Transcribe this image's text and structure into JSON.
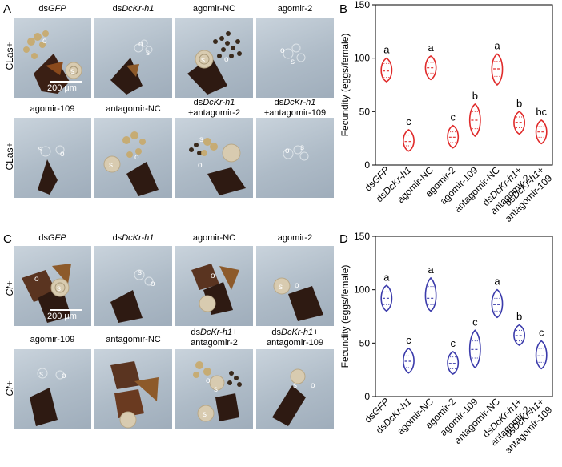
{
  "panels": {
    "A": {
      "letter": "A",
      "row_top_label": "CLas+",
      "row_bottom_label": "CLas+",
      "top_labels": [
        {
          "pre": "ds",
          "it": "GFP",
          "post": ""
        },
        {
          "pre": "ds",
          "it": "DcKr-h1",
          "post": ""
        },
        {
          "pre": "agomir-NC",
          "it": "",
          "post": ""
        },
        {
          "pre": "agomir-2",
          "it": "",
          "post": ""
        }
      ],
      "bottom_labels": [
        {
          "l1pre": "agomir-109",
          "l1it": "",
          "l1post": "",
          "l2": ""
        },
        {
          "l1pre": "antagomir-NC",
          "l1it": "",
          "l1post": "",
          "l2": ""
        },
        {
          "l1pre": "ds",
          "l1it": "DcKr-h1",
          "l1post": "",
          "l2": "+antagomir-2"
        },
        {
          "l1pre": "ds",
          "l1it": "DcKr-h1",
          "l1post": "",
          "l2": "+antagomir-109"
        }
      ],
      "scale": "200 μm"
    },
    "C": {
      "letter": "C",
      "row_top_label": "Cf+",
      "row_bottom_label": "Cf+",
      "top_labels": [
        {
          "pre": "ds",
          "it": "GFP",
          "post": ""
        },
        {
          "pre": "ds",
          "it": "DcKr-h1",
          "post": ""
        },
        {
          "pre": "agomir-NC",
          "it": "",
          "post": ""
        },
        {
          "pre": "agomir-2",
          "it": "",
          "post": ""
        }
      ],
      "bottom_labels": [
        {
          "l1pre": "agomir-109",
          "l1it": "",
          "l1post": "",
          "l2": ""
        },
        {
          "l1pre": "antagomir-NC",
          "l1it": "",
          "l1post": "",
          "l2": ""
        },
        {
          "l1pre": "ds",
          "l1it": "DcKr-h1",
          "l1post": "+",
          "l2": "antagomir-2"
        },
        {
          "l1pre": "ds",
          "l1it": "DcKr-h1",
          "l1post": "+",
          "l2": "antagomir-109"
        }
      ],
      "scale": "200 μm"
    }
  },
  "photo_markers": {
    "s": "s",
    "o": "o"
  },
  "chart_data": [
    {
      "id": "B",
      "letter": "B",
      "type": "violin",
      "color": "#e02a2a",
      "ylabel": "Fecundity (eggs/female)",
      "ylim": [
        0,
        150
      ],
      "yticks": [
        0,
        50,
        100,
        150
      ],
      "categories": [
        {
          "pre": "ds",
          "it": "GFP",
          "post": "",
          "l2": ""
        },
        {
          "pre": "ds",
          "it": "DcKr-h1",
          "post": "",
          "l2": ""
        },
        {
          "pre": "agomir-NC",
          "it": "",
          "post": "",
          "l2": ""
        },
        {
          "pre": "agomir-2",
          "it": "",
          "post": "",
          "l2": ""
        },
        {
          "pre": "agomir-109",
          "it": "",
          "post": "",
          "l2": ""
        },
        {
          "pre": "antagomir-NC",
          "it": "",
          "post": "",
          "l2": ""
        },
        {
          "pre": "ds",
          "it": "DcKr-h1",
          "post": "+",
          "l2": "antagomir-2"
        },
        {
          "pre": "ds",
          "it": "DcKr-h1",
          "post": "+",
          "l2": "antagomir-109"
        }
      ],
      "series": [
        {
          "min": 78,
          "max": 100,
          "median": 88,
          "q1": 82,
          "q3": 95,
          "sig": "a"
        },
        {
          "min": 13,
          "max": 33,
          "median": 22,
          "q1": 18,
          "q3": 28,
          "sig": "c"
        },
        {
          "min": 80,
          "max": 102,
          "median": 91,
          "q1": 86,
          "q3": 96,
          "sig": "a"
        },
        {
          "min": 16,
          "max": 37,
          "median": 26,
          "q1": 21,
          "q3": 31,
          "sig": "c"
        },
        {
          "min": 27,
          "max": 57,
          "median": 42,
          "q1": 34,
          "q3": 50,
          "sig": "b"
        },
        {
          "min": 75,
          "max": 104,
          "median": 90,
          "q1": 83,
          "q3": 97,
          "sig": "a"
        },
        {
          "min": 29,
          "max": 50,
          "median": 40,
          "q1": 35,
          "q3": 45,
          "sig": "b"
        },
        {
          "min": 20,
          "max": 42,
          "median": 31,
          "q1": 26,
          "q3": 36,
          "sig": "bc"
        }
      ]
    },
    {
      "id": "D",
      "letter": "D",
      "type": "violin",
      "color": "#3b3bab",
      "ylabel": "Fecundity (eggs/female)",
      "ylim": [
        0,
        150
      ],
      "yticks": [
        0,
        50,
        100,
        150
      ],
      "categories": [
        {
          "pre": "ds",
          "it": "GFP",
          "post": "",
          "l2": ""
        },
        {
          "pre": "ds",
          "it": "DcKr-h1",
          "post": "",
          "l2": ""
        },
        {
          "pre": "agomir-NC",
          "it": "",
          "post": "",
          "l2": ""
        },
        {
          "pre": "agomir-2",
          "it": "",
          "post": "",
          "l2": ""
        },
        {
          "pre": "agomir-109",
          "it": "",
          "post": "",
          "l2": ""
        },
        {
          "pre": "antagomir-NC",
          "it": "",
          "post": "",
          "l2": ""
        },
        {
          "pre": "ds",
          "it": "DcKr-h1",
          "post": "+",
          "l2": "antagomir-2"
        },
        {
          "pre": "ds",
          "it": "DcKr-h1",
          "post": "+",
          "l2": "antagomir-109"
        }
      ],
      "series": [
        {
          "min": 80,
          "max": 104,
          "median": 92,
          "q1": 86,
          "q3": 98,
          "sig": "a"
        },
        {
          "min": 22,
          "max": 45,
          "median": 33,
          "q1": 27,
          "q3": 38,
          "sig": "c"
        },
        {
          "min": 80,
          "max": 111,
          "median": 92,
          "q1": 86,
          "q3": 103,
          "sig": "a"
        },
        {
          "min": 21,
          "max": 42,
          "median": 31,
          "q1": 26,
          "q3": 37,
          "sig": "c"
        },
        {
          "min": 27,
          "max": 62,
          "median": 44,
          "q1": 36,
          "q3": 52,
          "sig": "c"
        },
        {
          "min": 74,
          "max": 100,
          "median": 86,
          "q1": 80,
          "q3": 92,
          "sig": "a"
        },
        {
          "min": 48,
          "max": 67,
          "median": 57,
          "q1": 52,
          "q3": 62,
          "sig": "b"
        },
        {
          "min": 26,
          "max": 52,
          "median": 38,
          "q1": 32,
          "q3": 45,
          "sig": "c"
        }
      ]
    }
  ]
}
